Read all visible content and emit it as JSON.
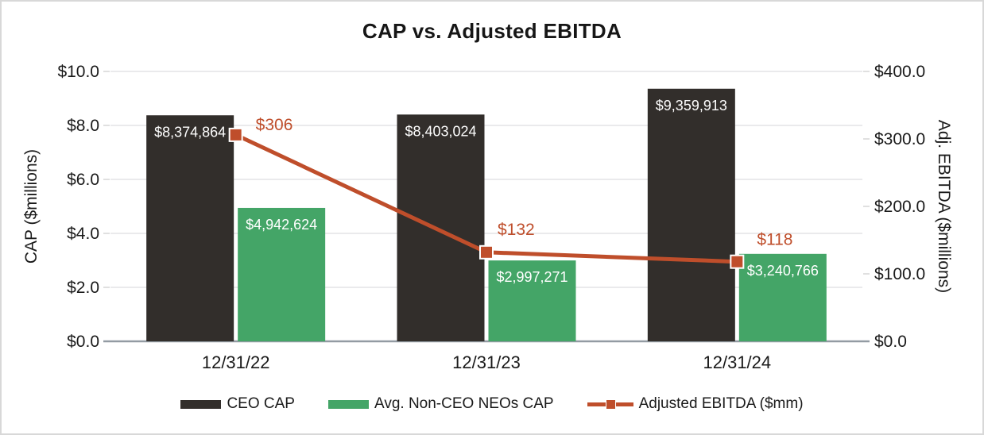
{
  "chart_data": {
    "type": "bar+line",
    "title": "CAP vs. Adjusted EBITDA",
    "categories": [
      "12/31/22",
      "12/31/23",
      "12/31/24"
    ],
    "series": [
      {
        "name": "CEO CAP",
        "type": "bar",
        "axis": "left",
        "color": "#322E2B",
        "label_color": "#FFFFFF",
        "values": [
          8374864,
          8403024,
          9359913
        ],
        "labels": [
          "$8,374,864",
          "$8,403,024",
          "$9,359,913"
        ]
      },
      {
        "name": "Avg. Non-CEO NEOs CAP",
        "type": "bar",
        "axis": "left",
        "color": "#44A567",
        "label_color": "#FFFFFF",
        "values": [
          4942624,
          2997271,
          3240766
        ],
        "labels": [
          "$4,942,624",
          "$2,997,271",
          "$3,240,766"
        ]
      },
      {
        "name": "Adjusted EBITDA ($mm)",
        "type": "line",
        "axis": "right",
        "color": "#BF4E2B",
        "marker": "square",
        "values": [
          306,
          132,
          118
        ],
        "labels": [
          "$306",
          "$132",
          "$118"
        ]
      }
    ],
    "left_axis": {
      "title": "CAP ($millions)",
      "min": 0,
      "max": 10000000,
      "tick_labels": [
        "$0.0",
        "$2.0",
        "$4.0",
        "$6.0",
        "$8.0",
        "$10.0"
      ]
    },
    "right_axis": {
      "title": "Adj. EBITDA ($millions)",
      "min": 0,
      "max": 400,
      "tick_labels": [
        "$0.0",
        "$100.0",
        "$200.0",
        "$300.0",
        "$400.0"
      ]
    },
    "grid": true,
    "legend_position": "bottom",
    "colors": {
      "gridline": "#E4E4E6",
      "axis_line": "#939BA3",
      "frame_border": "#D8D8D8"
    }
  }
}
